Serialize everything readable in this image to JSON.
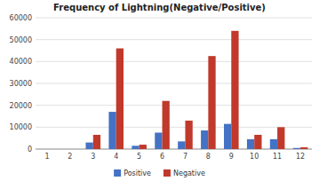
{
  "chart_data": {
    "type": "bar",
    "title": "Frequency of Lightning(Negative/Positive)",
    "categories": [
      "1",
      "2",
      "3",
      "4",
      "5",
      "6",
      "7",
      "8",
      "9",
      "10",
      "11",
      "12"
    ],
    "series": [
      {
        "name": "Positive",
        "color": "#4472c4",
        "values": [
          0,
          0,
          3000,
          17000,
          1500,
          7500,
          3500,
          8500,
          11500,
          4500,
          4500,
          500
        ]
      },
      {
        "name": "Negative",
        "color": "#c0392b",
        "values": [
          0,
          0,
          6500,
          46000,
          2000,
          22000,
          13000,
          42500,
          54000,
          6500,
          10000,
          800
        ]
      }
    ],
    "ylim": [
      0,
      60000
    ],
    "yticks": [
      0,
      10000,
      20000,
      30000,
      40000,
      50000,
      60000
    ],
    "grid": true,
    "legend": "bottom"
  }
}
